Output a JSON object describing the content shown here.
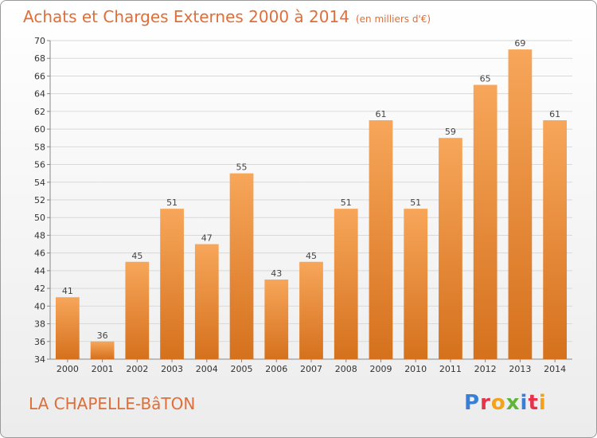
{
  "header": {
    "title": "Achats et Charges Externes 2000 à 2014",
    "unit": "(en milliers d'€)"
  },
  "footer": {
    "commune": "LA CHAPELLE-BâTON",
    "logo_text": "Proxiti"
  },
  "colors": {
    "title": "#e06e38",
    "bar_light": "#f6a65b",
    "bar_dark": "#d7741f",
    "grid": "#d9d9d9"
  },
  "chart_data": {
    "type": "bar",
    "title": "Achats et Charges Externes 2000 à 2014",
    "subtitle": "(en milliers d'€)",
    "xlabel": "",
    "ylabel": "",
    "ylim": [
      34,
      70
    ],
    "yticks": [
      34,
      36,
      38,
      40,
      42,
      44,
      46,
      48,
      50,
      52,
      54,
      56,
      58,
      60,
      62,
      64,
      66,
      68,
      70
    ],
    "grid": true,
    "categories": [
      "2000",
      "2001",
      "2002",
      "2003",
      "2004",
      "2005",
      "2006",
      "2007",
      "2008",
      "2009",
      "2010",
      "2011",
      "2012",
      "2013",
      "2014"
    ],
    "values": [
      41,
      36,
      45,
      51,
      47,
      55,
      43,
      45,
      51,
      61,
      51,
      59,
      65,
      69,
      61
    ]
  }
}
